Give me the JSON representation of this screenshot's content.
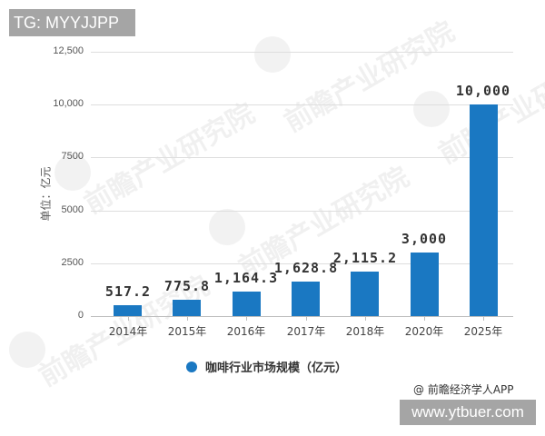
{
  "overlay": {
    "top_tag": "TG: MYYJJPP",
    "bottom_site": "www.ytbuer.com",
    "source": "@ 前瞻经济学人APP",
    "watermark": "前瞻产业研究院"
  },
  "colors": {
    "bar": "#1a78c2",
    "grid": "#dedede",
    "axis": "#bdbdbd",
    "overlay_bg": "#a5a5a5"
  },
  "chart_data": {
    "type": "bar",
    "title": "",
    "xlabel": "",
    "ylabel": "单位：亿元",
    "categories": [
      "2014年",
      "2015年",
      "2016年",
      "2017年",
      "2018年",
      "2020年",
      "2025年"
    ],
    "series": [
      {
        "name": "咖啡行业市场规模（亿元）",
        "values": [
          517.2,
          775.8,
          1164.3,
          1628.8,
          2115.2,
          3000,
          10000
        ],
        "labels": [
          "517.2",
          "775.8",
          "1,164.3",
          "1,628.8",
          "2,115.2",
          "3,000",
          "10,000"
        ]
      }
    ],
    "yticks": [
      "0",
      "2500",
      "5000",
      "7500",
      "10,000",
      "12,500"
    ],
    "ytick_values": [
      0,
      2500,
      5000,
      7500,
      10000,
      12500
    ],
    "ylim": [
      0,
      12500
    ],
    "grid": true,
    "legend_position": "bottom"
  }
}
